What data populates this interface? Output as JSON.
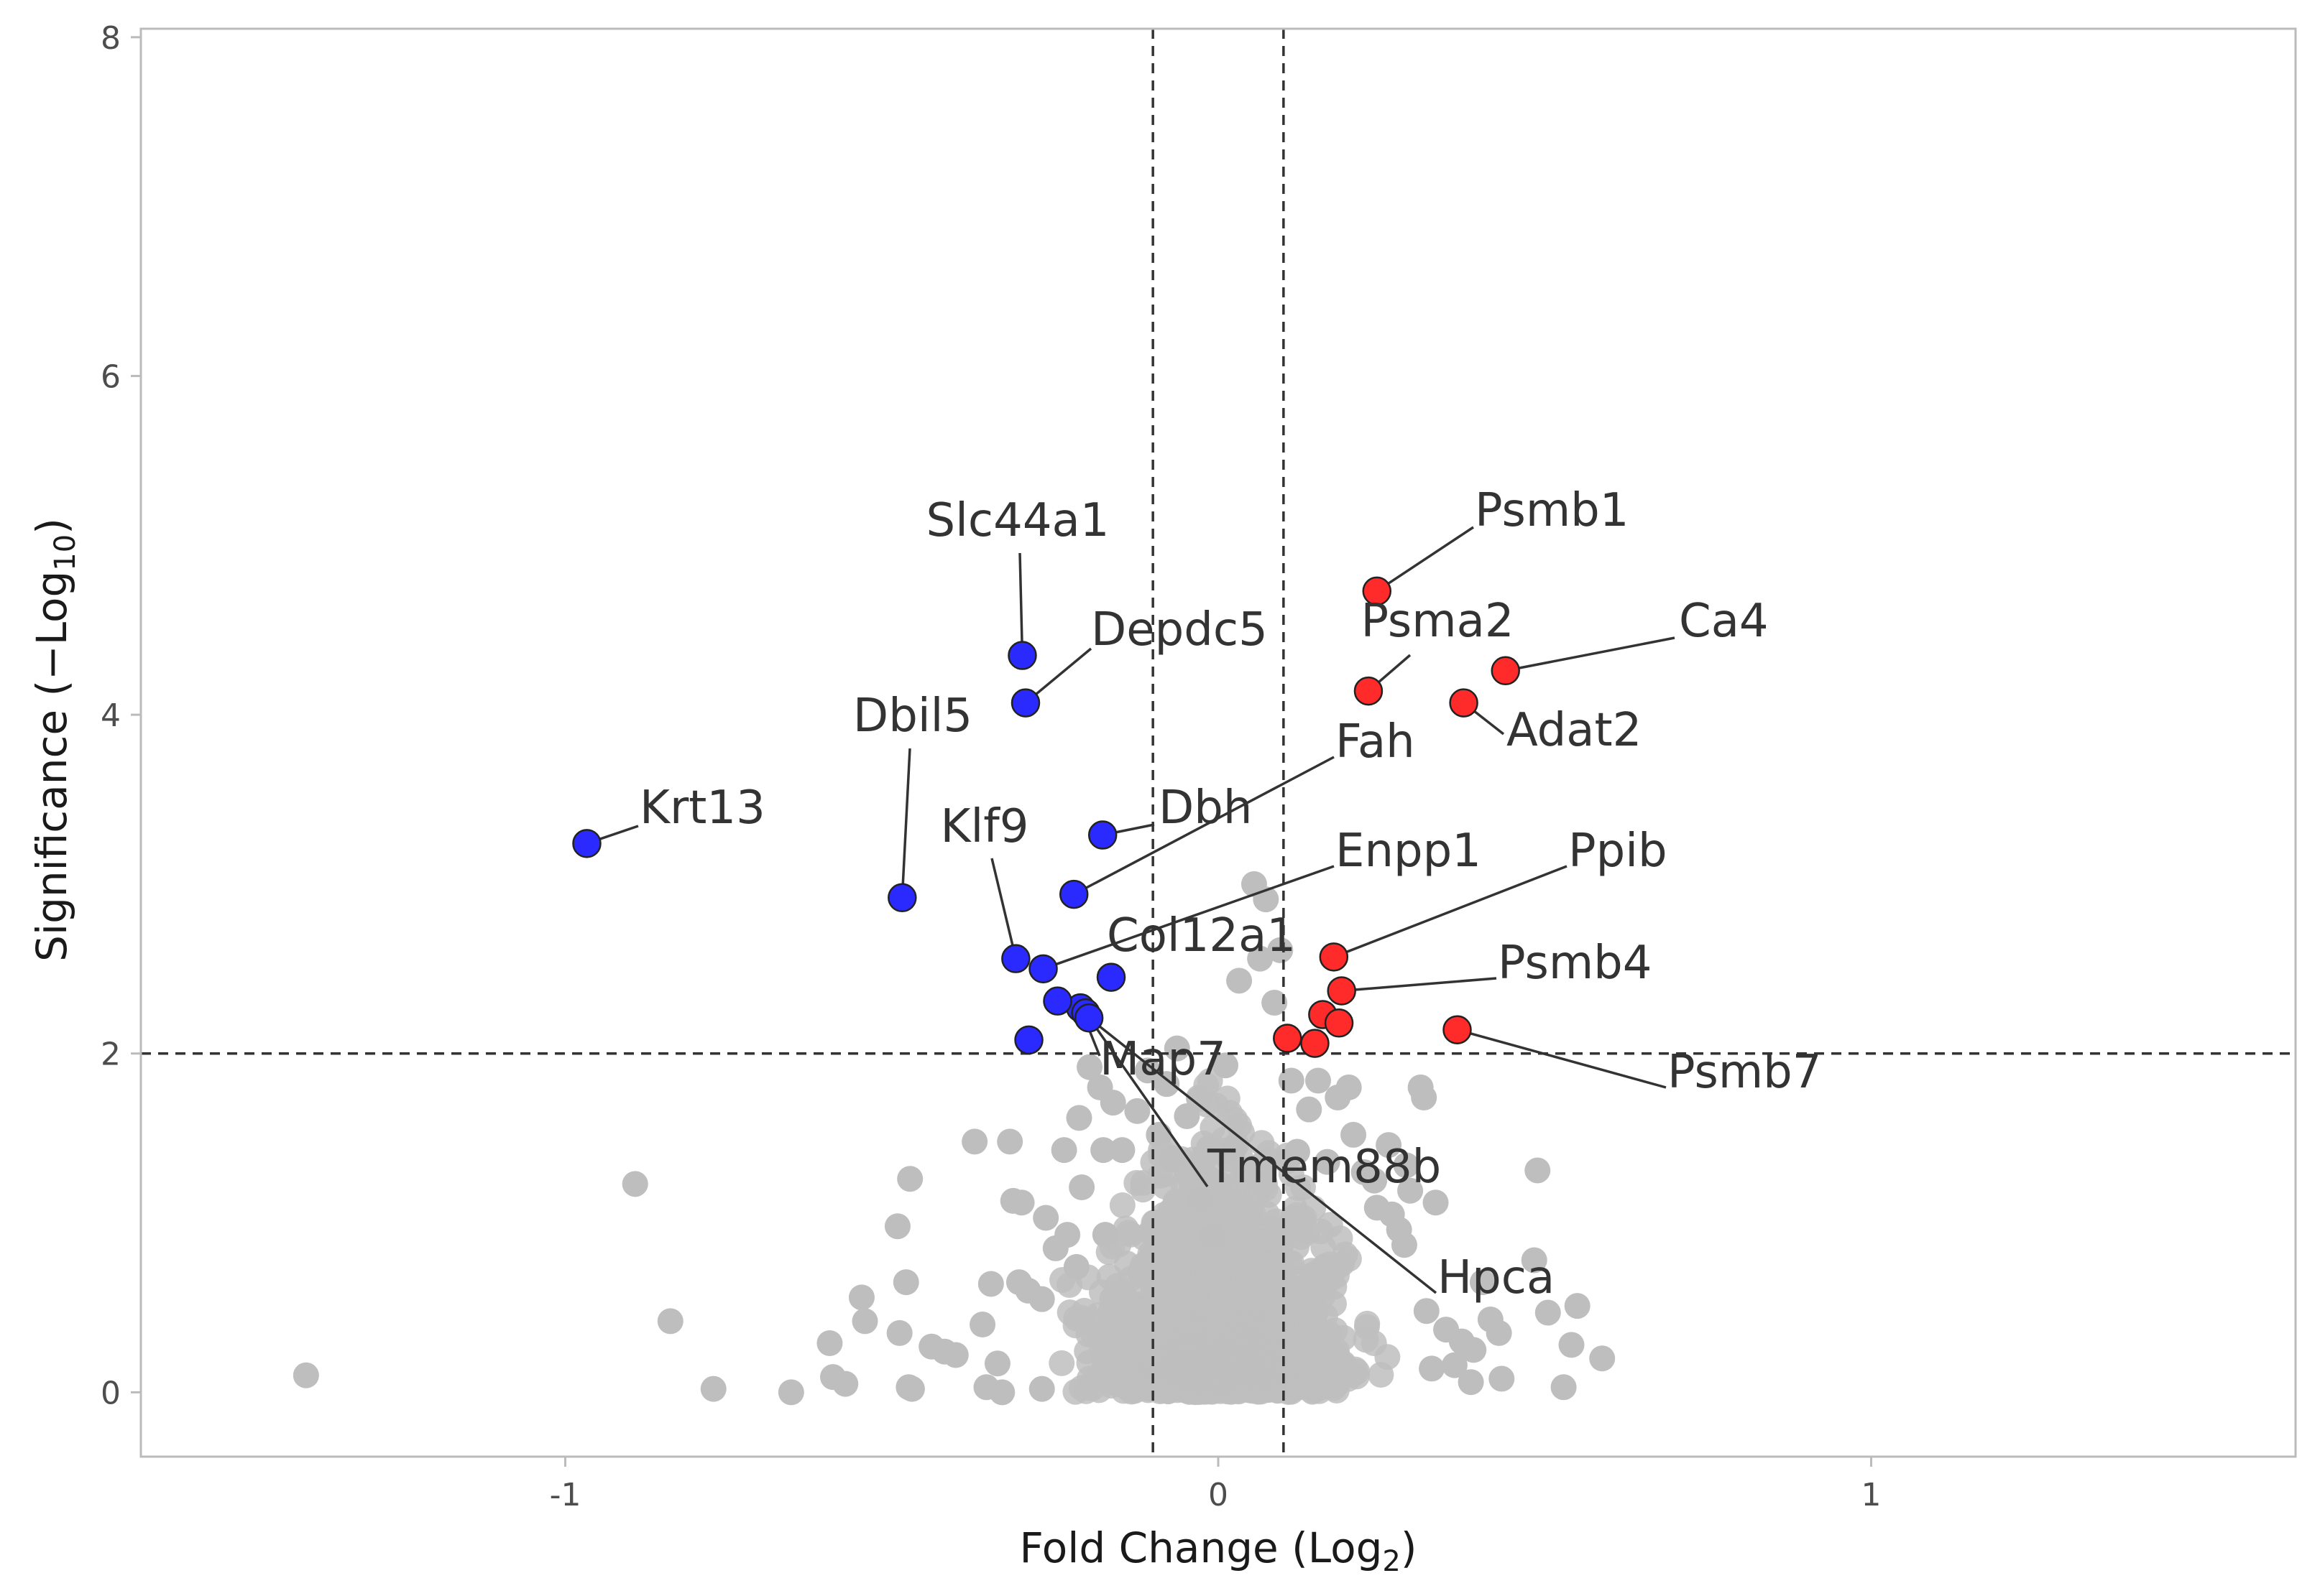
{
  "chart_data": {
    "type": "scatter",
    "subtype": "volcano",
    "title": "",
    "xlabel": "Fold Change (Log2)",
    "xlabel_parts": {
      "prefix": "Fold Change (Log",
      "sub": "2",
      "suffix": ")"
    },
    "ylabel": "Significance (−Log10)",
    "ylabel_parts": {
      "prefix": "Significance (−Log",
      "sub": "10",
      "suffix": ")"
    },
    "xlim": [
      -1.65,
      1.65
    ],
    "ylim": [
      -0.38,
      8.05
    ],
    "x_ticks": [
      -1,
      0,
      1
    ],
    "x_tick_labels": [
      "-1",
      "0",
      "1"
    ],
    "y_ticks": [
      0,
      2,
      4,
      6,
      8
    ],
    "y_tick_labels": [
      "0",
      "2",
      "4",
      "6",
      "8"
    ],
    "grid": false,
    "thresholds": {
      "fold_change": [
        -0.1,
        0.1
      ],
      "significance": 2
    },
    "colors": {
      "not_significant": "#bebebe",
      "down": "#2a2aff",
      "up": "#ff2a2a",
      "threshold_line": "#333333",
      "label_line": "#333333",
      "axis": "#bbbbbb"
    },
    "labeled_points": [
      {
        "gene": "Slc44a1",
        "x": -0.3,
        "y": 4.35,
        "group": "down"
      },
      {
        "gene": "Depdc5",
        "x": -0.295,
        "y": 4.07,
        "group": "down"
      },
      {
        "gene": "Krt13",
        "x": -0.967,
        "y": 3.24,
        "group": "down"
      },
      {
        "gene": "Dbil5",
        "x": -0.484,
        "y": 2.92,
        "group": "down"
      },
      {
        "gene": "Dbh",
        "x": -0.177,
        "y": 3.29,
        "group": "down"
      },
      {
        "gene": "Fah",
        "x": -0.221,
        "y": 2.94,
        "group": "down"
      },
      {
        "gene": "Klf9",
        "x": -0.31,
        "y": 2.56,
        "group": "down"
      },
      {
        "gene": "Enpp1",
        "x": -0.268,
        "y": 2.5,
        "group": "down"
      },
      {
        "gene": "Col12a1",
        "x": -0.164,
        "y": 2.45,
        "group": "down"
      },
      {
        "gene": "Map7",
        "x": -0.211,
        "y": 2.27,
        "group": "down"
      },
      {
        "gene": "Tmem88b",
        "x": -0.203,
        "y": 2.24,
        "group": "down"
      },
      {
        "gene": "Hpca",
        "x": -0.198,
        "y": 2.21,
        "group": "down"
      },
      {
        "gene": "Psmb1",
        "x": 0.243,
        "y": 4.73,
        "group": "up"
      },
      {
        "gene": "Psma2",
        "x": 0.23,
        "y": 4.14,
        "group": "up"
      },
      {
        "gene": "Ca4",
        "x": 0.44,
        "y": 4.26,
        "group": "up"
      },
      {
        "gene": "Adat2",
        "x": 0.376,
        "y": 4.07,
        "group": "up"
      },
      {
        "gene": "Ppib",
        "x": 0.177,
        "y": 2.57,
        "group": "up"
      },
      {
        "gene": "Psmb4",
        "x": 0.189,
        "y": 2.37,
        "group": "up"
      },
      {
        "gene": "Psmb7",
        "x": 0.366,
        "y": 2.14,
        "group": "up"
      }
    ],
    "other_significant_points": [
      {
        "x": -0.246,
        "y": 2.31,
        "group": "down"
      },
      {
        "x": -0.29,
        "y": 2.08,
        "group": "down"
      },
      {
        "x": 0.106,
        "y": 2.09,
        "group": "up"
      },
      {
        "x": 0.148,
        "y": 2.06,
        "group": "up"
      },
      {
        "x": 0.16,
        "y": 2.23,
        "group": "up"
      },
      {
        "x": 0.185,
        "y": 2.18,
        "group": "up"
      }
    ],
    "not_significant_points": [
      [
        -1.397,
        0.1
      ],
      [
        -0.893,
        1.23
      ],
      [
        -0.839,
        0.42
      ],
      [
        -0.773,
        0.02
      ],
      [
        -0.654,
        0.0
      ],
      [
        -0.595,
        0.29
      ],
      [
        -0.59,
        0.09
      ],
      [
        -0.571,
        0.05
      ],
      [
        -0.546,
        0.56
      ],
      [
        -0.541,
        0.42
      ],
      [
        -0.491,
        0.98
      ],
      [
        -0.488,
        0.35
      ],
      [
        -0.478,
        0.65
      ],
      [
        -0.472,
        1.26
      ],
      [
        -0.474,
        0.03
      ],
      [
        -0.469,
        0.02
      ],
      [
        -0.439,
        0.27
      ],
      [
        -0.419,
        0.24
      ],
      [
        -0.402,
        0.22
      ],
      [
        -0.373,
        1.48
      ],
      [
        -0.361,
        0.4
      ],
      [
        -0.355,
        0.03
      ],
      [
        -0.348,
        0.64
      ],
      [
        -0.338,
        0.17
      ],
      [
        -0.331,
        0.0
      ],
      [
        -0.319,
        1.48
      ],
      [
        -0.314,
        1.13
      ],
      [
        -0.305,
        0.65
      ],
      [
        -0.301,
        1.12
      ],
      [
        -0.291,
        0.6
      ],
      [
        -0.27,
        0.55
      ],
      [
        -0.27,
        0.02
      ],
      [
        -0.264,
        1.03
      ],
      [
        -0.249,
        0.85
      ],
      [
        -0.236,
        1.43
      ],
      [
        -0.231,
        0.93
      ],
      [
        -0.217,
        0.74
      ],
      [
        -0.213,
        1.62
      ],
      [
        -0.209,
        1.21
      ],
      [
        -0.197,
        1.92
      ],
      [
        -0.181,
        1.8
      ],
      [
        -0.176,
        1.43
      ],
      [
        -0.173,
        0.93
      ],
      [
        -0.161,
        1.71
      ],
      [
        -0.147,
        1.43
      ],
      [
        -0.124,
        1.66
      ],
      [
        -0.108,
        1.9
      ],
      [
        -0.091,
        1.52
      ],
      [
        -0.079,
        1.82
      ],
      [
        -0.071,
        1.38
      ],
      [
        -0.063,
        2.03
      ],
      [
        -0.048,
        1.63
      ],
      [
        -0.026,
        1.13
      ],
      [
        -0.009,
        0.92
      ],
      [
        0.011,
        1.93
      ],
      [
        0.024,
        1.44
      ],
      [
        0.032,
        2.43
      ],
      [
        0.055,
        3.0
      ],
      [
        0.064,
        2.56
      ],
      [
        0.073,
        2.91
      ],
      [
        0.086,
        2.3
      ],
      [
        0.095,
        2.61
      ],
      [
        0.112,
        1.84
      ],
      [
        0.121,
        1.42
      ],
      [
        0.139,
        1.67
      ],
      [
        0.153,
        1.84
      ],
      [
        0.167,
        1.36
      ],
      [
        0.183,
        1.74
      ],
      [
        0.2,
        1.8
      ],
      [
        0.207,
        1.52
      ],
      [
        0.223,
        1.3
      ],
      [
        0.239,
        1.25
      ],
      [
        0.243,
        1.09
      ],
      [
        0.261,
        1.46
      ],
      [
        0.266,
        1.05
      ],
      [
        0.277,
        0.96
      ],
      [
        0.285,
        0.87
      ],
      [
        0.288,
        1.34
      ],
      [
        0.294,
        1.19
      ],
      [
        0.31,
        1.8
      ],
      [
        0.315,
        1.74
      ],
      [
        0.333,
        1.12
      ],
      [
        0.319,
        0.48
      ],
      [
        0.327,
        0.14
      ],
      [
        0.349,
        0.37
      ],
      [
        0.362,
        0.16
      ],
      [
        0.373,
        0.3
      ],
      [
        0.387,
        0.06
      ],
      [
        0.391,
        0.25
      ],
      [
        0.405,
        0.65
      ],
      [
        0.417,
        0.43
      ],
      [
        0.43,
        0.35
      ],
      [
        0.434,
        0.08
      ],
      [
        0.484,
        0.78
      ],
      [
        0.489,
        1.31
      ],
      [
        0.505,
        0.47
      ],
      [
        0.529,
        0.03
      ],
      [
        0.55,
        0.51
      ],
      [
        0.541,
        0.28
      ],
      [
        0.588,
        0.2
      ]
    ]
  }
}
